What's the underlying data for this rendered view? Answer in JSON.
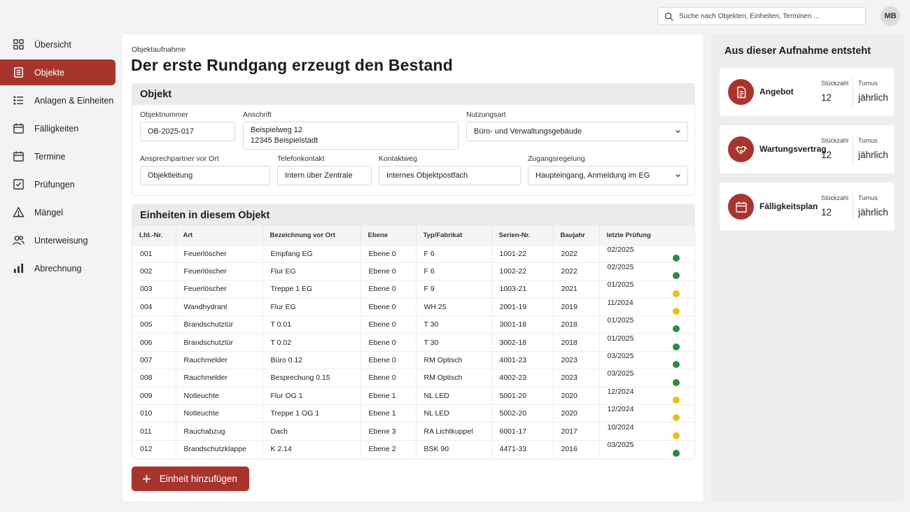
{
  "search": {
    "placeholder": "Suche nach Objekten, Einheiten, Terminen ..."
  },
  "user": {
    "initials": "MB"
  },
  "nav": [
    {
      "label": "Übersicht",
      "icon": "grid-icon",
      "active": false
    },
    {
      "label": "Objekte",
      "icon": "building-icon",
      "active": true
    },
    {
      "label": "Anlagen & Einheiten",
      "icon": "list-icon",
      "active": false
    },
    {
      "label": "Fälligkeiten",
      "icon": "calendar-icon",
      "active": false
    },
    {
      "label": "Termine",
      "icon": "calendar-icon",
      "active": false
    },
    {
      "label": "Prüfungen",
      "icon": "checkbox-icon",
      "active": false
    },
    {
      "label": "Mängel",
      "icon": "warning-icon",
      "active": false
    },
    {
      "label": "Unterweisung",
      "icon": "people-icon",
      "active": false
    },
    {
      "label": "Abrechnung",
      "icon": "bar-chart-icon",
      "active": false
    }
  ],
  "page": {
    "breadcrumb": "Objektaufnahme",
    "title": "Der erste Rundgang erzeugt den Bestand"
  },
  "object": {
    "heading": "Objekt",
    "fields": {
      "objektnummer": {
        "label": "Objektnummer",
        "value": "OB-2025-017"
      },
      "anschrift": {
        "label": "Anschrift",
        "line1": "Beispielweg 12",
        "line2": "12345 Beispielstadt"
      },
      "nutzungsart": {
        "label": "Nutzungsart",
        "value": "Büro- und Verwaltungsgebäude"
      },
      "ansprechpartner": {
        "label": "Ansprechpartner vor Ort",
        "value": "Objektleitung"
      },
      "telefon": {
        "label": "Telefonkontakt",
        "value": "Intern über Zentrale"
      },
      "kontaktweg": {
        "label": "Kontaktweg",
        "value": "Internes Objektpostfach"
      },
      "zugang": {
        "label": "Zugangsregelung",
        "value": "Haupteingang, Anmeldung im EG"
      }
    }
  },
  "units": {
    "heading": "Einheiten in diesem Objekt",
    "columns": [
      "Lfd.-Nr.",
      "Art",
      "Bezeichnung vor Ort",
      "Ebene",
      "Typ/Fabrikat",
      "Serien-Nr.",
      "Baujahr",
      "letzte Prüfung"
    ],
    "rows": [
      {
        "nr": "001",
        "art": "Feuerlöscher",
        "bez": "Empfang EG",
        "ebene": "Ebene 0",
        "typ": "F 6",
        "serie": "1001-22",
        "baujahr": "2022",
        "pruefung": "02/2025",
        "status": "green"
      },
      {
        "nr": "002",
        "art": "Feuerlöscher",
        "bez": "Flur EG",
        "ebene": "Ebene 0",
        "typ": "F 6",
        "serie": "1002-22",
        "baujahr": "2022",
        "pruefung": "02/2025",
        "status": "green"
      },
      {
        "nr": "003",
        "art": "Feuerlöscher",
        "bez": "Treppe 1 EG",
        "ebene": "Ebene 0",
        "typ": "F 9",
        "serie": "1003-21",
        "baujahr": "2021",
        "pruefung": "01/2025",
        "status": "yellow"
      },
      {
        "nr": "004",
        "art": "Wandhydrant",
        "bez": "Flur EG",
        "ebene": "Ebene 0",
        "typ": "WH 25",
        "serie": "2001-19",
        "baujahr": "2019",
        "pruefung": "11/2024",
        "status": "yellow"
      },
      {
        "nr": "005",
        "art": "Brandschutztür",
        "bez": "T 0.01",
        "ebene": "Ebene 0",
        "typ": "T 30",
        "serie": "3001-18",
        "baujahr": "2018",
        "pruefung": "01/2025",
        "status": "green"
      },
      {
        "nr": "006",
        "art": "Brandschutztür",
        "bez": "T 0.02",
        "ebene": "Ebene 0",
        "typ": "T 30",
        "serie": "3002-18",
        "baujahr": "2018",
        "pruefung": "01/2025",
        "status": "green"
      },
      {
        "nr": "007",
        "art": "Rauchmelder",
        "bez": "Büro 0.12",
        "ebene": "Ebene 0",
        "typ": "RM Optisch",
        "serie": "4001-23",
        "baujahr": "2023",
        "pruefung": "03/2025",
        "status": "green"
      },
      {
        "nr": "008",
        "art": "Rauchmelder",
        "bez": "Besprechung 0.15",
        "ebene": "Ebene 0",
        "typ": "RM Optisch",
        "serie": "4002-23",
        "baujahr": "2023",
        "pruefung": "03/2025",
        "status": "green"
      },
      {
        "nr": "009",
        "art": "Notleuchte",
        "bez": "Flur OG 1",
        "ebene": "Ebene 1",
        "typ": "NL LED",
        "serie": "5001-20",
        "baujahr": "2020",
        "pruefung": "12/2024",
        "status": "yellow"
      },
      {
        "nr": "010",
        "art": "Notleuchte",
        "bez": "Treppe 1 OG 1",
        "ebene": "Ebene 1",
        "typ": "NL LED",
        "serie": "5002-20",
        "baujahr": "2020",
        "pruefung": "12/2024",
        "status": "yellow"
      },
      {
        "nr": "011",
        "art": "Rauchabzug",
        "bez": "Dach",
        "ebene": "Ebene 3",
        "typ": "RA Lichtkuppel",
        "serie": "6001-17",
        "baujahr": "2017",
        "pruefung": "10/2024",
        "status": "yellow"
      },
      {
        "nr": "012",
        "art": "Brandschutzklappe",
        "bez": "K 2.14",
        "ebene": "Ebene 2",
        "typ": "BSK 90",
        "serie": "4471-33",
        "baujahr": "2016",
        "pruefung": "03/2025",
        "status": "green"
      }
    ],
    "add_label": "Einheit hinzufügen"
  },
  "status_colors": {
    "green": "#2e8b3a",
    "yellow": "#e8c117"
  },
  "accent": "#a8352d",
  "right": {
    "title": "Aus dieser Aufnahme entsteht",
    "qty_label": "Stückzahl",
    "turnus_label": "Turnus",
    "cards": [
      {
        "name": "Angebot",
        "icon": "document-icon",
        "qty": "12",
        "turnus": "jährlich"
      },
      {
        "name": "Wartungsvertrag",
        "icon": "handshake-icon",
        "qty": "12",
        "turnus": "jährlich"
      },
      {
        "name": "Fälligkeitsplan",
        "icon": "calendar-icon",
        "qty": "12",
        "turnus": "jährlich"
      }
    ]
  }
}
